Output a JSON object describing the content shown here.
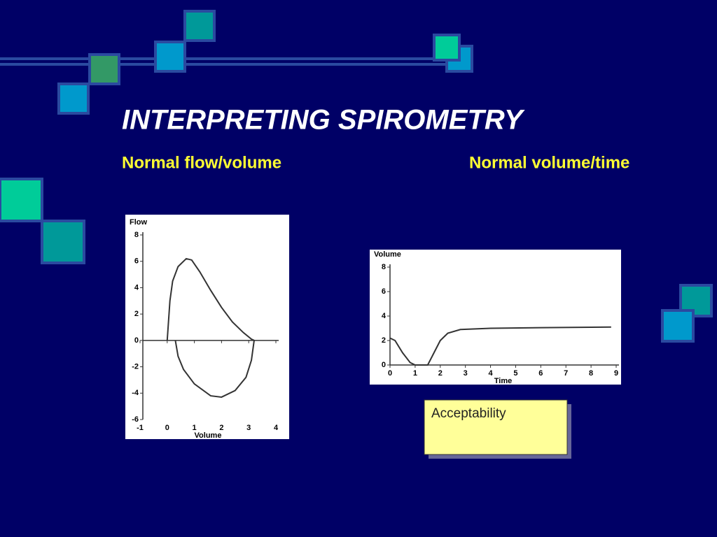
{
  "title": "INTERPRETING SPIROMETRY",
  "subtitles": [
    "Normal flow/volume",
    "Normal volume/time"
  ],
  "callout": "Acceptability",
  "chart_data": [
    {
      "type": "line",
      "y_label": "Flow",
      "x_label": "Volume",
      "xlim": [
        -1,
        4
      ],
      "xticks": [
        -1,
        0,
        1,
        2,
        3,
        4
      ],
      "ylim": [
        -6,
        8
      ],
      "yticks": [
        -6,
        -4,
        -2,
        0,
        2,
        4,
        6,
        8
      ],
      "series": [
        {
          "color": "#333333",
          "x": [
            0,
            0.1,
            0.2,
            0.4,
            0.7,
            0.9,
            1.2,
            1.6,
            2,
            2.4,
            2.8,
            3.1,
            3.2,
            3.1,
            2.9,
            2.5,
            2,
            1.6,
            1,
            0.6,
            0.4,
            0.3
          ],
          "values": [
            0,
            3,
            4.5,
            5.6,
            6.2,
            6.1,
            5.2,
            3.8,
            2.5,
            1.4,
            0.6,
            0.1,
            0,
            -1.5,
            -2.8,
            -3.8,
            -4.3,
            -4.2,
            -3.3,
            -2.2,
            -1.2,
            0
          ]
        }
      ]
    },
    {
      "type": "line",
      "y_label": "Volume",
      "x_label": "Time",
      "xlim": [
        0,
        9
      ],
      "xticks": [
        0,
        1,
        2,
        3,
        4,
        5,
        6,
        7,
        8,
        9
      ],
      "ylim": [
        0,
        8
      ],
      "yticks": [
        0,
        2,
        4,
        6,
        8
      ],
      "series": [
        {
          "color": "#333333",
          "x": [
            0,
            0.2,
            0.5,
            0.8,
            1,
            1.5,
            1.7,
            2,
            2.3,
            2.8,
            4,
            6,
            8.8
          ],
          "values": [
            2.2,
            2,
            1,
            0.2,
            0,
            0,
            0.8,
            2,
            2.6,
            2.9,
            3,
            3.05,
            3.1
          ]
        }
      ]
    }
  ]
}
